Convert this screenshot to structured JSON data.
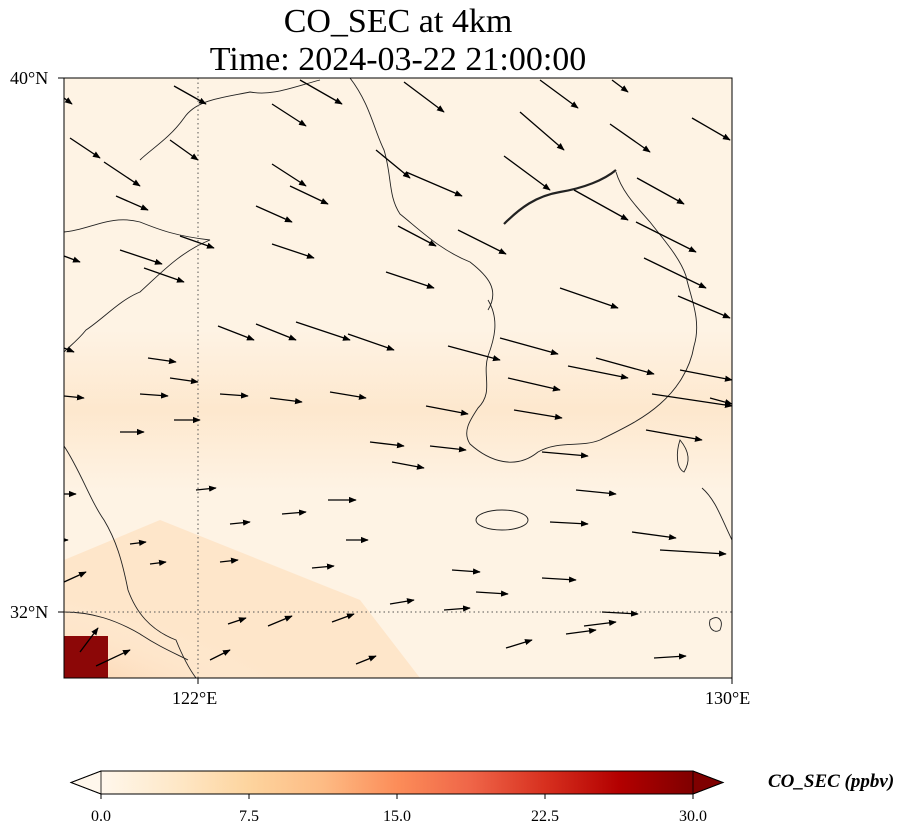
{
  "title": {
    "line1": "CO_SEC at 4km",
    "line2": "Time: 2024-03-22 21:00:00"
  },
  "map": {
    "lon_range": [
      120,
      130
    ],
    "lat_range": [
      31,
      40
    ],
    "x_ticks": [
      {
        "value": 122,
        "label": "122°E"
      },
      {
        "value": 130,
        "label": "130°E"
      }
    ],
    "y_ticks": [
      {
        "value": 40,
        "label": "40°N"
      },
      {
        "value": 32,
        "label": "32°N"
      }
    ],
    "gridlines": "dotted",
    "field_colors": {
      "background": "#fef3e4",
      "band": "#fde5c8",
      "hot": "#f9a06a",
      "hotter": "#e3502e",
      "max": "#8c0707"
    },
    "coastline_color": "#222222",
    "arrow_color": "#000000"
  },
  "colorbar": {
    "label": "CO_SEC (ppbv)",
    "range": [
      0,
      30
    ],
    "ticks": [
      "0.0",
      "7.5",
      "15.0",
      "22.5",
      "30.0"
    ],
    "colormap": "OrRd",
    "extend": "both",
    "stops": [
      "#fff7ec",
      "#fee8c8",
      "#fdd49e",
      "#fdbb84",
      "#fc8d59",
      "#ef6548",
      "#d7301f",
      "#b30000",
      "#7f0000"
    ]
  }
}
